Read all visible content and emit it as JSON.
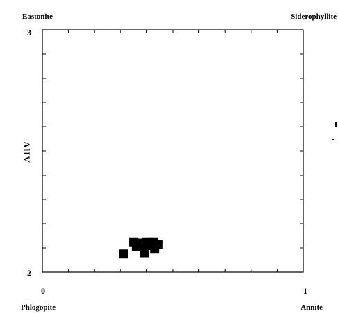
{
  "chart_data": {
    "type": "scatter",
    "title": "",
    "xlabel": "",
    "ylabel": "AlIV",
    "xlim": [
      0,
      1
    ],
    "ylim": [
      2,
      3
    ],
    "x_tick_labels": [
      "0",
      "1"
    ],
    "y_tick_labels": [
      "2",
      "3"
    ],
    "x_minor_ticks": [
      0.1,
      0.2,
      0.3,
      0.4,
      0.5,
      0.6,
      0.7,
      0.8,
      0.9
    ],
    "y_minor_ticks": [
      2.1,
      2.2,
      2.3,
      2.4,
      2.5,
      2.6,
      2.7,
      2.8,
      2.9
    ],
    "grid": false,
    "legend": "none",
    "marker": "filled-square",
    "corner_labels": {
      "top_left": "Eastonite",
      "top_right": "Siderophyllite",
      "bottom_left": "Phlogopite",
      "bottom_right": "Annite"
    },
    "points": [
      {
        "x": 0.31,
        "y": 2.075
      },
      {
        "x": 0.35,
        "y": 2.125
      },
      {
        "x": 0.36,
        "y": 2.105
      },
      {
        "x": 0.375,
        "y": 2.12
      },
      {
        "x": 0.39,
        "y": 2.105
      },
      {
        "x": 0.39,
        "y": 2.08
      },
      {
        "x": 0.4,
        "y": 2.125
      },
      {
        "x": 0.41,
        "y": 2.11
      },
      {
        "x": 0.425,
        "y": 2.125
      },
      {
        "x": 0.43,
        "y": 2.095
      },
      {
        "x": 0.445,
        "y": 2.115
      }
    ]
  }
}
